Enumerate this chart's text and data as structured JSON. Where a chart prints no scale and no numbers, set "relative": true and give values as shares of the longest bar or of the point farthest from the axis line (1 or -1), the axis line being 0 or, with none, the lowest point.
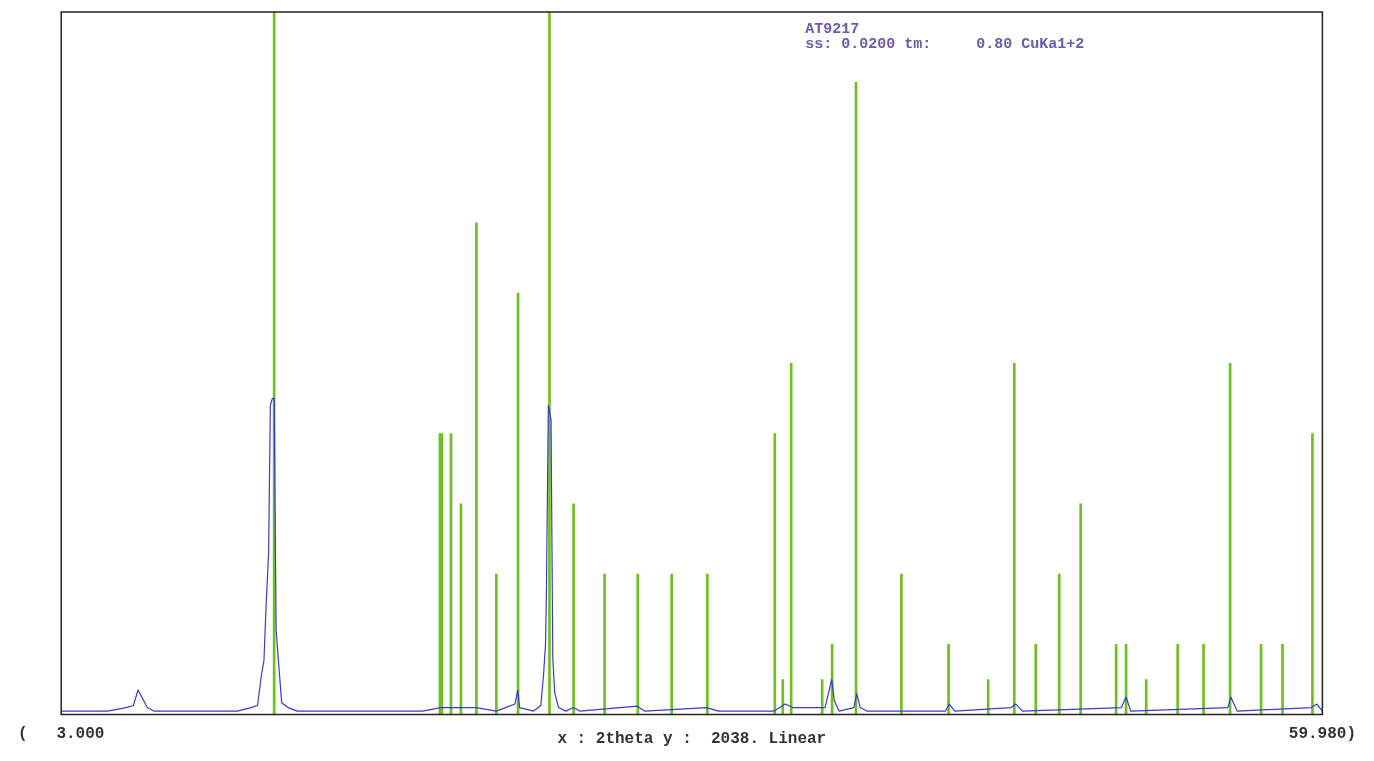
{
  "chart_data": {
    "type": "bar",
    "relative": true,
    "xlabel": "x : 2theta y :  2038. Linear",
    "annotations": [
      "AT9217",
      "ss: 0.0200 tm:     0.80 CuKa1+2"
    ],
    "xlim": [
      3,
      59.98
    ],
    "xticks": [
      {
        "value": 3,
        "label": "(   3.000"
      },
      {
        "value": 59.98,
        "label": "59.980)"
      }
    ],
    "grid": false,
    "legend": false,
    "series": [
      {
        "color": "#6fbf1f",
        "x": [
          12.62,
          20.11,
          20.2,
          20.61,
          21.06,
          21.76,
          22.66,
          23.64,
          25.06,
          26.15,
          27.55,
          29.05,
          30.58,
          32.19,
          35.24,
          35.6,
          35.98,
          37.38,
          37.83,
          38.91,
          40.96,
          43.09,
          44.88,
          46.06,
          47.03,
          48.09,
          49.06,
          50.66,
          51.11,
          52.02,
          53.44,
          54.61,
          55.81,
          57.21,
          58.18,
          59.53
        ],
        "values": [
          1,
          0.4,
          0.4,
          0.4,
          0.3,
          0.7,
          0.2,
          0.6,
          1,
          0.3,
          0.2,
          0.2,
          0.2,
          0.2,
          0.4,
          0.05,
          0.5,
          0.05,
          0.1,
          0.9,
          0.2,
          0.1,
          0.05,
          0.5,
          0.1,
          0.2,
          0.3,
          0.1,
          0.1,
          0.05,
          0.1,
          0.1,
          0.5,
          0.1,
          0.1,
          0.4
        ]
      },
      {
        "type": "line",
        "color": "#3a3acc",
        "x": [
          3,
          5.09,
          5.93,
          6.26,
          6.47,
          6.64,
          6.89,
          7.18,
          10.95,
          11.58,
          11.87,
          12.04,
          12.16,
          12.25,
          12.37,
          12.45,
          12.54,
          12.62,
          12.71,
          12.83,
          12.96,
          13.25,
          13.67,
          19.32,
          20.15,
          21.74,
          22.66,
          23.5,
          23.63,
          23.71,
          24.34,
          24.67,
          24.8,
          24.88,
          24.92,
          25.01,
          25.13,
          25.21,
          25.3,
          25.47,
          25.8,
          26.14,
          26.43,
          29.02,
          29.36,
          32.16,
          32.7,
          35.21,
          35.71,
          36.05,
          37.51,
          37.81,
          37.93,
          38.14,
          38.81,
          38.94,
          39.1,
          39.4,
          42.95,
          43.12,
          43.37,
          45.92,
          46.13,
          46.43,
          50.9,
          51.11,
          51.32,
          55.71,
          55.84,
          56.13,
          59.48,
          59.73,
          59.98
        ],
        "values": [
          0.005,
          0.005,
          0.01,
          0.013,
          0.035,
          0.025,
          0.01,
          0.005,
          0.005,
          0.01,
          0.013,
          0.055,
          0.077,
          0.15,
          0.23,
          0.44,
          0.45,
          0.45,
          0.12,
          0.07,
          0.017,
          0.01,
          0.005,
          0.005,
          0.01,
          0.01,
          0.005,
          0.015,
          0.035,
          0.01,
          0.005,
          0.013,
          0.06,
          0.1,
          0.17,
          0.44,
          0.42,
          0.08,
          0.03,
          0.01,
          0.005,
          0.01,
          0.005,
          0.012,
          0.005,
          0.01,
          0.005,
          0.005,
          0.015,
          0.01,
          0.01,
          0.05,
          0.02,
          0.005,
          0.01,
          0.03,
          0.01,
          0.005,
          0.005,
          0.015,
          0.005,
          0.01,
          0.015,
          0.005,
          0.01,
          0.025,
          0.005,
          0.01,
          0.025,
          0.005,
          0.01,
          0.015,
          0.005
        ]
      }
    ]
  }
}
